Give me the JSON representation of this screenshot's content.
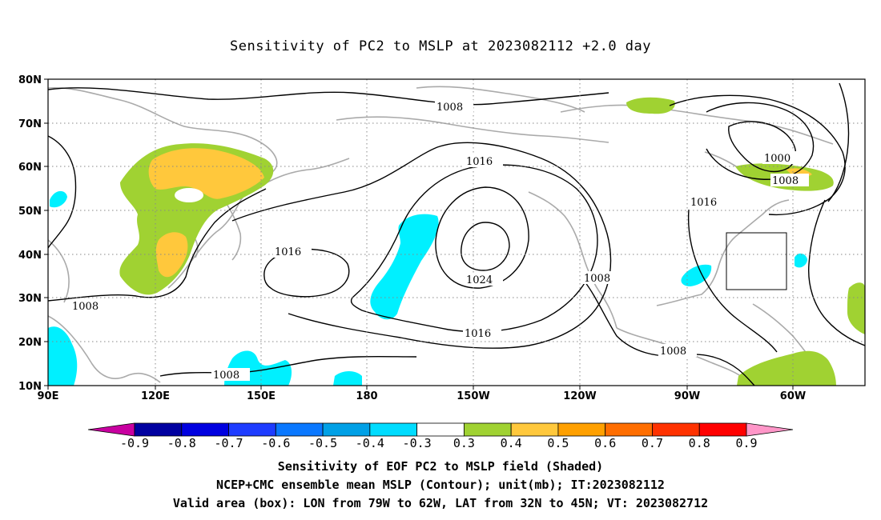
{
  "title": "Sensitivity of PC2 to MSLP at 2023082112 +2.0 day",
  "lat_labels": [
    "80N",
    "70N",
    "60N",
    "50N",
    "40N",
    "30N",
    "20N",
    "10N"
  ],
  "lon_labels": [
    "90E",
    "120E",
    "150E",
    "180",
    "150W",
    "120W",
    "90W",
    "60W"
  ],
  "contour_labels": [
    "1008",
    "1016",
    "1000",
    "1008",
    "1016",
    "1016",
    "1024",
    "1008",
    "1016",
    "1008",
    "1008",
    "1008"
  ],
  "colorbar": {
    "values": [
      "-0.9",
      "-0.8",
      "-0.7",
      "-0.6",
      "-0.5",
      "-0.4",
      "-0.3",
      "0.3",
      "0.4",
      "0.5",
      "0.6",
      "0.7",
      "0.8",
      "0.9"
    ],
    "colors": [
      "#0000a0",
      "#0000e0",
      "#1e3cff",
      "#0a78ff",
      "#00a0e6",
      "#00dcff",
      "#ffffff",
      "#a0d232",
      "#ffc83c",
      "#ffa000",
      "#ff6e00",
      "#ff3200",
      "#ff0000"
    ],
    "low_end_color": "#c800a0",
    "high_end_color": "#ff96c8"
  },
  "captions": [
    "Sensitivity of EOF PC2 to MSLP field (Shaded)",
    "NCEP+CMC ensemble mean MSLP (Contour); unit(mb); IT:2023082112",
    "Valid area (box): LON from 79W to 62W, LAT from 32N to 45N; VT: 2023082712"
  ]
}
